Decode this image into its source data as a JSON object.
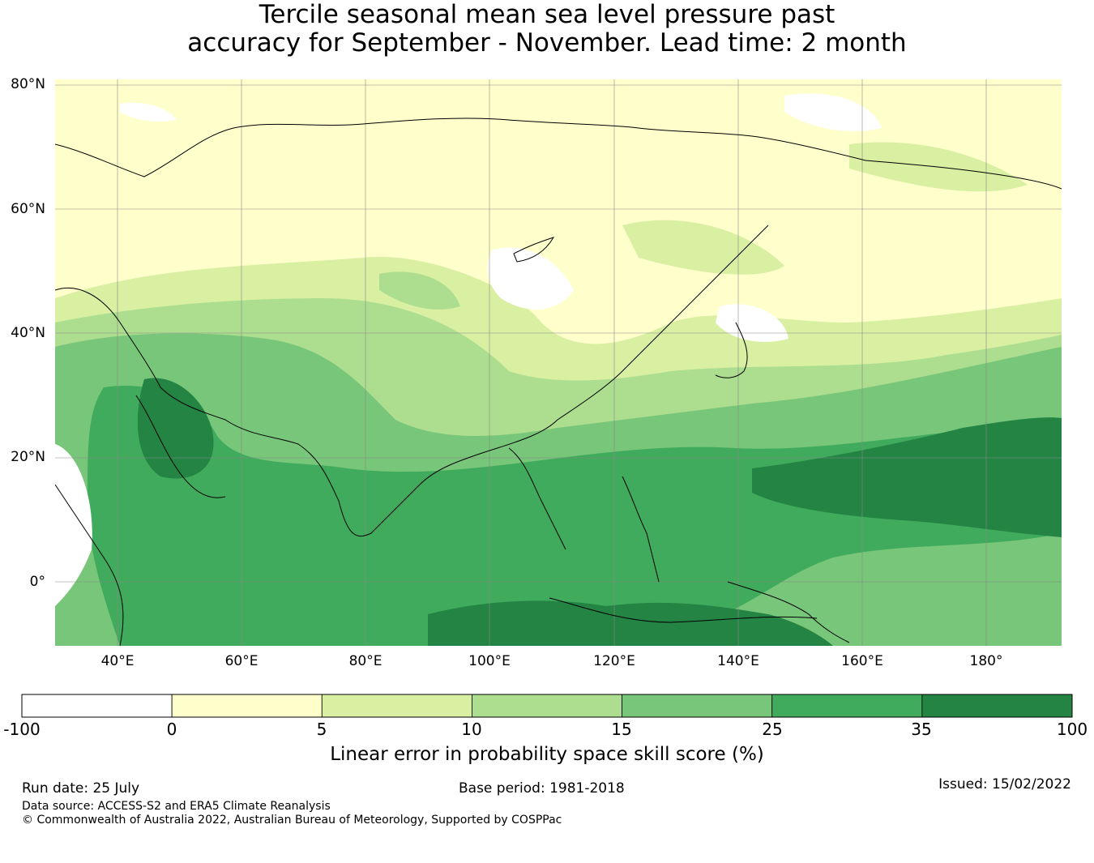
{
  "title_line1": "Tercile seasonal mean sea level pressure past",
  "title_line2": "accuracy for September - November. Lead time: 2 month",
  "lat_labels": [
    "80°N",
    "60°N",
    "40°N",
    "20°N",
    "0°"
  ],
  "lon_labels": [
    "40°E",
    "60°E",
    "80°E",
    "100°E",
    "120°E",
    "140°E",
    "160°E",
    "180°"
  ],
  "colorbar": {
    "bounds": [
      "-100",
      "0",
      "5",
      "10",
      "15",
      "25",
      "35",
      "100"
    ],
    "colors": [
      "#ffffff",
      "#ffffcc",
      "#d9f0a3",
      "#addd8e",
      "#78c679",
      "#41ab5d",
      "#238443"
    ],
    "label": "Linear error in probability space skill score (%)"
  },
  "footer": {
    "run_date": "Run date: 25 July",
    "base_period": "Base period: 1981-2018",
    "issued": "Issued: 15/02/2022",
    "data_source": "Data source: ACCESS-S2 and ERA5 Climate Reanalysis",
    "copyright": "© Commonwealth of Australia 2022, Australian Bureau of Meteorology, Supported by COSPPac"
  }
}
